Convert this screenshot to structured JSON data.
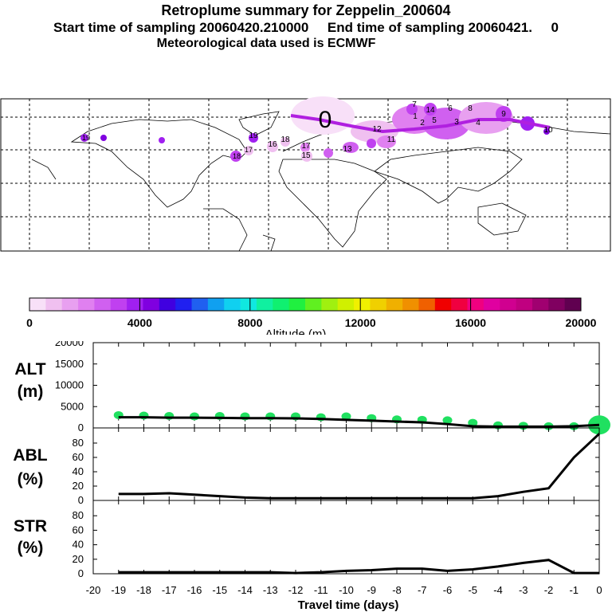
{
  "header": {
    "title": "Retroplume summary for Zeppelin_200604",
    "sampling": "Start time of sampling 20060420.210000     End time of sampling 20060421.     0",
    "meteo": "Meteorological data used is ECMWF"
  },
  "map": {
    "labels": [
      "0",
      "1",
      "2",
      "3",
      "4",
      "5",
      "6",
      "7",
      "8",
      "9",
      "10",
      "11",
      "12",
      "13",
      "14",
      "15",
      "16",
      "17",
      "18",
      "19"
    ]
  },
  "colorbar": {
    "title": "Altitude (m)",
    "ticks": [
      "0",
      "4000",
      "8000",
      "12000",
      "16000",
      "20000"
    ],
    "colors": [
      "#f8e0f8",
      "#f0c0f0",
      "#e8a0f0",
      "#e080f0",
      "#d060f0",
      "#c040f0",
      "#a020f0",
      "#8000e0",
      "#4000e0",
      "#2020f0",
      "#2060f0",
      "#10a0f0",
      "#10d0f0",
      "#10e8e0",
      "#10f0a0",
      "#10f070",
      "#20f040",
      "#60f020",
      "#a0f010",
      "#d0f000",
      "#f0f000",
      "#f0d000",
      "#f0b000",
      "#f09000",
      "#f06000",
      "#f00000",
      "#f00040",
      "#f00080",
      "#e000a0",
      "#d00090",
      "#c00080",
      "#a00070",
      "#800060",
      "#600050"
    ]
  },
  "chart_data": [
    {
      "type": "line",
      "panel_label": [
        "ALT",
        "(m)"
      ],
      "x": [
        -19,
        -18,
        -17,
        -16,
        -15,
        -14,
        -13,
        -12,
        -11,
        -10,
        -9,
        -8,
        -7,
        -6,
        -5,
        -4,
        -3,
        -2,
        -1,
        0
      ],
      "values": [
        2500,
        2500,
        2400,
        2400,
        2350,
        2300,
        2300,
        2250,
        2100,
        1900,
        1700,
        1500,
        1300,
        900,
        400,
        300,
        300,
        300,
        400,
        700
      ],
      "bubbles": [
        3000,
        2900,
        2800,
        2700,
        2800,
        2700,
        2700,
        2700,
        2500,
        2700,
        2300,
        2000,
        1900,
        1800,
        1200,
        600,
        500,
        400,
        400,
        1500
      ],
      "ylim": [
        0,
        20000
      ],
      "yticks": [
        "0",
        "5000",
        "10000",
        "15000",
        "20000"
      ],
      "line_color": "#000000",
      "bubble_color": "#20e060"
    },
    {
      "type": "line",
      "panel_label": [
        "ABL",
        "(%)"
      ],
      "x": [
        -19,
        -18,
        -17,
        -16,
        -15,
        -14,
        -13,
        -12,
        -11,
        -10,
        -9,
        -8,
        -7,
        -6,
        -5,
        -4,
        -3,
        -2,
        -1,
        0
      ],
      "values": [
        9,
        9,
        10,
        8,
        6,
        4,
        3,
        3,
        3,
        3,
        3,
        3,
        3,
        3,
        3,
        6,
        12,
        17,
        60,
        93
      ],
      "ylim": [
        0,
        100
      ],
      "yticks": [
        "0",
        "20",
        "40",
        "60",
        "80"
      ]
    },
    {
      "type": "line",
      "panel_label": [
        "STR",
        "(%)"
      ],
      "x": [
        -19,
        -18,
        -17,
        -16,
        -15,
        -14,
        -13,
        -12,
        -11,
        -10,
        -9,
        -8,
        -7,
        -6,
        -5,
        -4,
        -3,
        -2,
        -1,
        0
      ],
      "values": [
        2,
        2,
        2,
        2,
        2,
        2,
        2,
        1,
        2,
        4,
        5,
        7,
        7,
        4,
        6,
        10,
        15,
        19,
        1,
        1
      ],
      "ylim": [
        0,
        100
      ],
      "yticks": [
        "0",
        "20",
        "40",
        "60",
        "80"
      ],
      "xlabel": "Travel time (days)",
      "xticks": [
        "-20",
        "-19",
        "-18",
        "-17",
        "-16",
        "-15",
        "-14",
        "-13",
        "-12",
        "-11",
        "-10",
        "-9",
        "-8",
        "-7",
        "-6",
        "-5",
        "-4",
        "-3",
        "-2",
        "-1",
        "0"
      ]
    }
  ]
}
